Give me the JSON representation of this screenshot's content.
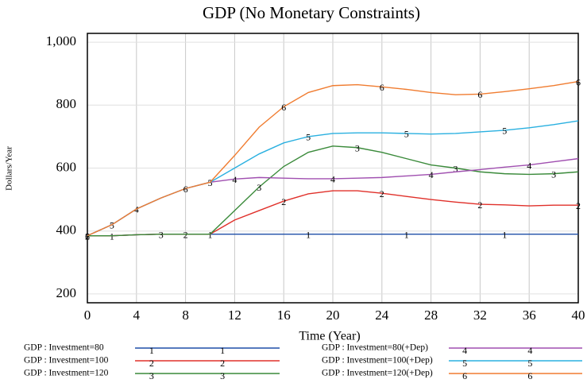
{
  "chart_data": {
    "type": "line",
    "title": "GDP (No Monetary Constraints)",
    "xlabel": "Time (Year)",
    "ylabel": "Dollars/Year",
    "x": [
      0,
      2,
      4,
      6,
      8,
      10,
      12,
      14,
      16,
      18,
      20,
      22,
      24,
      26,
      28,
      30,
      32,
      34,
      36,
      38,
      40
    ],
    "xlim": [
      0,
      40
    ],
    "xticks": [
      0,
      4,
      8,
      12,
      16,
      20,
      24,
      28,
      32,
      36,
      40
    ],
    "ylim": [
      172,
      1028
    ],
    "yticks": [
      200,
      400,
      600,
      800,
      {
        "value": 1000,
        "label": "1,000"
      }
    ],
    "grid": true,
    "series": [
      {
        "name": "GDP : Investment=80",
        "marker": "1",
        "color": "#1f4fa8",
        "values": [
          385,
          385,
          388,
          390,
          390,
          390,
          390,
          390,
          390,
          390,
          390,
          390,
          390,
          390,
          390,
          390,
          390,
          390,
          390,
          390,
          390
        ]
      },
      {
        "name": "GDP : Investment=100",
        "marker": "2",
        "color": "#e0302a",
        "values": [
          385,
          385,
          388,
          390,
          390,
          390,
          435,
          465,
          495,
          518,
          528,
          528,
          520,
          510,
          500,
          492,
          485,
          483,
          480,
          482,
          482
        ]
      },
      {
        "name": "GDP : Investment=120",
        "marker": "3",
        "color": "#3a8a3a",
        "values": [
          385,
          385,
          388,
          390,
          390,
          390,
          465,
          540,
          605,
          650,
          670,
          665,
          650,
          630,
          610,
          600,
          588,
          582,
          580,
          582,
          588
        ]
      },
      {
        "name": "GDP : Investment=80(+Dep)",
        "marker": "4",
        "color": "#a04fb0",
        "values": [
          385,
          420,
          470,
          505,
          535,
          555,
          565,
          570,
          568,
          566,
          566,
          568,
          570,
          575,
          580,
          588,
          595,
          603,
          610,
          620,
          630
        ]
      },
      {
        "name": "GDP : Investment=100(+Dep)",
        "marker": "5",
        "color": "#2ab0e0",
        "values": [
          385,
          420,
          470,
          505,
          535,
          555,
          600,
          645,
          680,
          700,
          710,
          712,
          712,
          710,
          708,
          710,
          715,
          720,
          728,
          738,
          750
        ]
      },
      {
        "name": "GDP : Investment=120(+Dep)",
        "marker": "6",
        "color": "#f07c30",
        "values": [
          385,
          420,
          470,
          505,
          535,
          555,
          640,
          730,
          795,
          840,
          862,
          865,
          858,
          850,
          840,
          833,
          835,
          843,
          852,
          862,
          875
        ]
      }
    ]
  }
}
